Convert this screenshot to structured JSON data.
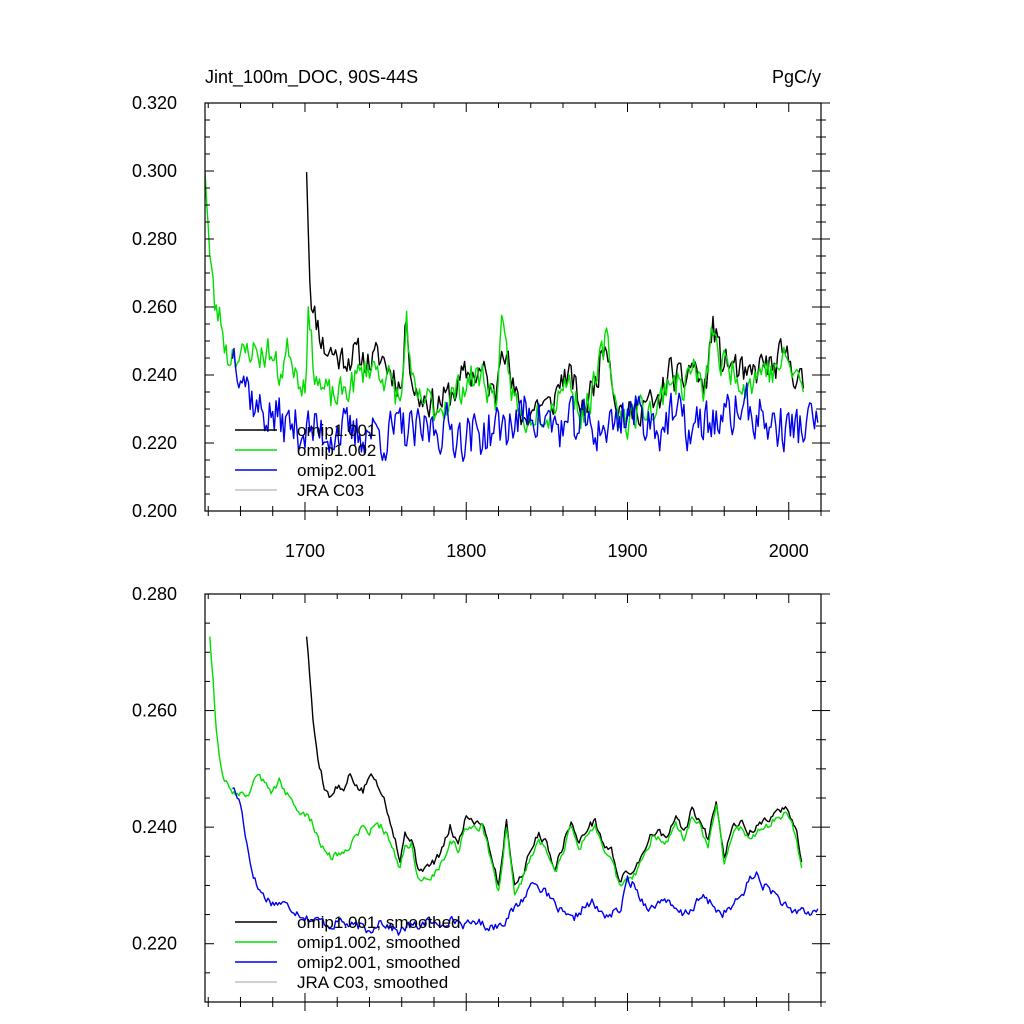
{
  "figure": {
    "title_left": "Jint_100m_DOC, 90S-44S",
    "title_right": "PgC/y"
  },
  "colors": {
    "omip1.001": "#000000",
    "omip1.002": "#00dd00",
    "omip2.001": "#0000ee",
    "JRA C03": "#c0c0c0",
    "axis": "#000000"
  },
  "chart_data": [
    {
      "type": "line",
      "title": "Jint_100m_DOC, 90S-44S",
      "units": "PgC/y",
      "xlim": [
        1638,
        2020
      ],
      "ylim": [
        0.2,
        0.32
      ],
      "xticks": [
        1700,
        1800,
        1900,
        2000
      ],
      "xtick_labels": [
        "1700",
        "1800",
        "1900",
        "2000"
      ],
      "yticks": [
        0.2,
        0.22,
        0.24,
        0.26,
        0.28,
        0.3,
        0.32
      ],
      "ytick_labels": [
        "0.200",
        "0.220",
        "0.240",
        "0.260",
        "0.280",
        "0.300",
        "0.320"
      ],
      "legend_position": "lower-left",
      "series": [
        {
          "name": "omip1.001",
          "color_key": "omip1.001",
          "noise": 0.0045,
          "noise_seed": 11,
          "x": [
            1701,
            1703,
            1705,
            1708,
            1712,
            1716,
            1722,
            1730,
            1740,
            1748,
            1752,
            1756,
            1760,
            1763,
            1766,
            1770,
            1775,
            1780,
            1790,
            1800,
            1810,
            1818,
            1822,
            1825,
            1828,
            1835,
            1845,
            1852,
            1860,
            1866,
            1872,
            1880,
            1887,
            1893,
            1900,
            1910,
            1918,
            1926,
            1934,
            1940,
            1948,
            1953,
            1958,
            1966,
            1974,
            1980,
            1985,
            1990,
            1995,
            2000,
            2006,
            2009
          ],
          "y": [
            0.302,
            0.27,
            0.258,
            0.255,
            0.248,
            0.247,
            0.245,
            0.246,
            0.244,
            0.245,
            0.242,
            0.24,
            0.236,
            0.258,
            0.24,
            0.233,
            0.234,
            0.231,
            0.234,
            0.24,
            0.241,
            0.233,
            0.253,
            0.247,
            0.237,
            0.227,
            0.232,
            0.23,
            0.24,
            0.238,
            0.229,
            0.238,
            0.252,
            0.232,
            0.227,
            0.232,
            0.23,
            0.241,
            0.237,
            0.244,
            0.235,
            0.255,
            0.244,
            0.243,
            0.238,
            0.241,
            0.244,
            0.241,
            0.245,
            0.244,
            0.24,
            0.236
          ]
        },
        {
          "name": "omip1.002",
          "color_key": "omip1.002",
          "noise": 0.0045,
          "noise_seed": 23,
          "x": [
            1638,
            1641,
            1644,
            1648,
            1652,
            1656,
            1660,
            1666,
            1672,
            1678,
            1684,
            1690,
            1696,
            1700,
            1702,
            1705,
            1710,
            1716,
            1722,
            1730,
            1740,
            1748,
            1752,
            1756,
            1760,
            1763,
            1766,
            1770,
            1775,
            1780,
            1790,
            1800,
            1810,
            1818,
            1822,
            1825,
            1828,
            1835,
            1845,
            1852,
            1860,
            1866,
            1872,
            1880,
            1887,
            1893,
            1900,
            1910,
            1918,
            1926,
            1934,
            1940,
            1948,
            1953,
            1958,
            1966,
            1974,
            1980,
            1985,
            1990,
            1995,
            2000,
            2006,
            2009
          ],
          "y": [
            0.302,
            0.275,
            0.26,
            0.256,
            0.245,
            0.248,
            0.244,
            0.248,
            0.246,
            0.247,
            0.24,
            0.248,
            0.24,
            0.238,
            0.258,
            0.244,
            0.236,
            0.233,
            0.234,
            0.238,
            0.243,
            0.241,
            0.238,
            0.235,
            0.232,
            0.258,
            0.237,
            0.231,
            0.233,
            0.23,
            0.233,
            0.238,
            0.24,
            0.232,
            0.252,
            0.245,
            0.236,
            0.226,
            0.231,
            0.229,
            0.239,
            0.236,
            0.228,
            0.237,
            0.251,
            0.231,
            0.226,
            0.231,
            0.229,
            0.24,
            0.236,
            0.243,
            0.234,
            0.254,
            0.243,
            0.242,
            0.237,
            0.24,
            0.243,
            0.24,
            0.244,
            0.243,
            0.239,
            0.235
          ]
        },
        {
          "name": "omip2.001",
          "color_key": "omip2.001",
          "noise": 0.0065,
          "noise_seed": 37,
          "x": [
            1655,
            1660,
            1665,
            1670,
            1675,
            1680,
            1690,
            1700,
            1710,
            1720,
            1730,
            1740,
            1750,
            1760,
            1770,
            1780,
            1790,
            1800,
            1810,
            1820,
            1830,
            1840,
            1850,
            1860,
            1870,
            1880,
            1890,
            1900,
            1910,
            1920,
            1930,
            1940,
            1950,
            1960,
            1970,
            1980,
            1990,
            2000,
            2010,
            2018
          ],
          "y": [
            0.248,
            0.244,
            0.236,
            0.23,
            0.229,
            0.228,
            0.225,
            0.224,
            0.223,
            0.224,
            0.222,
            0.224,
            0.222,
            0.224,
            0.222,
            0.225,
            0.224,
            0.222,
            0.223,
            0.224,
            0.226,
            0.23,
            0.226,
            0.224,
            0.226,
            0.224,
            0.225,
            0.23,
            0.228,
            0.225,
            0.228,
            0.223,
            0.227,
            0.226,
            0.231,
            0.228,
            0.225,
            0.224,
            0.225,
            0.226
          ]
        }
      ],
      "legend": [
        {
          "label": "omip1.001",
          "color_key": "omip1.001"
        },
        {
          "label": "omip1.002",
          "color_key": "omip1.002"
        },
        {
          "label": "omip2.001",
          "color_key": "omip2.001"
        },
        {
          "label": "JRA C03",
          "color_key": "JRA C03"
        }
      ]
    },
    {
      "type": "line",
      "title": "",
      "xlim": [
        1638,
        2020
      ],
      "ylim": [
        0.21,
        0.28
      ],
      "xticks": [
        1700,
        1800,
        1900,
        2000
      ],
      "xtick_labels": [],
      "yticks": [
        0.22,
        0.24,
        0.26,
        0.28
      ],
      "ytick_labels": [
        "0.220",
        "0.240",
        "0.260",
        "0.280"
      ],
      "legend_position": "lower-left",
      "series": [
        {
          "name": "omip1.001, smoothed",
          "color_key": "omip1.001",
          "noise": 0.0006,
          "noise_seed": 5,
          "x": [
            1701,
            1703,
            1705,
            1708,
            1712,
            1716,
            1720,
            1724,
            1728,
            1732,
            1736,
            1740,
            1744,
            1748,
            1752,
            1756,
            1759,
            1762,
            1766,
            1770,
            1775,
            1780,
            1785,
            1790,
            1795,
            1800,
            1805,
            1810,
            1815,
            1820,
            1825,
            1830,
            1835,
            1840,
            1845,
            1850,
            1855,
            1860,
            1865,
            1870,
            1875,
            1880,
            1885,
            1890,
            1895,
            1900,
            1905,
            1910,
            1915,
            1920,
            1925,
            1930,
            1935,
            1940,
            1945,
            1950,
            1955,
            1960,
            1965,
            1970,
            1975,
            1980,
            1985,
            1990,
            1995,
            2000,
            2005,
            2008
          ],
          "y": [
            0.273,
            0.266,
            0.258,
            0.252,
            0.247,
            0.245,
            0.247,
            0.246,
            0.249,
            0.247,
            0.246,
            0.249,
            0.248,
            0.246,
            0.242,
            0.238,
            0.234,
            0.239,
            0.238,
            0.233,
            0.233,
            0.234,
            0.236,
            0.24,
            0.237,
            0.242,
            0.241,
            0.241,
            0.236,
            0.23,
            0.241,
            0.23,
            0.232,
            0.236,
            0.239,
            0.237,
            0.233,
            0.237,
            0.241,
            0.237,
            0.24,
            0.241,
            0.237,
            0.236,
            0.231,
            0.232,
            0.233,
            0.236,
            0.239,
            0.239,
            0.238,
            0.242,
            0.239,
            0.243,
            0.241,
            0.238,
            0.245,
            0.235,
            0.24,
            0.241,
            0.239,
            0.24,
            0.241,
            0.242,
            0.243,
            0.243,
            0.239,
            0.234
          ]
        },
        {
          "name": "omip1.002, smoothed",
          "color_key": "omip1.002",
          "noise": 0.0006,
          "noise_seed": 9,
          "x": [
            1641,
            1643,
            1645,
            1648,
            1652,
            1656,
            1660,
            1664,
            1668,
            1672,
            1676,
            1680,
            1684,
            1688,
            1692,
            1696,
            1700,
            1704,
            1708,
            1712,
            1716,
            1720,
            1724,
            1728,
            1732,
            1736,
            1740,
            1744,
            1748,
            1752,
            1756,
            1759,
            1762,
            1766,
            1770,
            1775,
            1780,
            1785,
            1790,
            1795,
            1800,
            1805,
            1810,
            1815,
            1820,
            1825,
            1830,
            1835,
            1840,
            1845,
            1850,
            1855,
            1860,
            1865,
            1870,
            1875,
            1880,
            1885,
            1890,
            1895,
            1900,
            1905,
            1910,
            1915,
            1920,
            1925,
            1930,
            1935,
            1940,
            1945,
            1950,
            1955,
            1960,
            1965,
            1970,
            1975,
            1980,
            1985,
            1990,
            1995,
            2000,
            2005,
            2008
          ],
          "y": [
            0.273,
            0.265,
            0.257,
            0.25,
            0.247,
            0.246,
            0.246,
            0.245,
            0.248,
            0.249,
            0.247,
            0.246,
            0.248,
            0.246,
            0.244,
            0.243,
            0.242,
            0.241,
            0.238,
            0.236,
            0.235,
            0.235,
            0.236,
            0.237,
            0.239,
            0.24,
            0.239,
            0.241,
            0.24,
            0.238,
            0.235,
            0.233,
            0.237,
            0.237,
            0.231,
            0.231,
            0.232,
            0.234,
            0.238,
            0.236,
            0.24,
            0.24,
            0.24,
            0.235,
            0.229,
            0.24,
            0.229,
            0.231,
            0.235,
            0.238,
            0.236,
            0.232,
            0.236,
            0.24,
            0.236,
            0.239,
            0.24,
            0.236,
            0.235,
            0.23,
            0.231,
            0.232,
            0.235,
            0.238,
            0.238,
            0.237,
            0.241,
            0.238,
            0.242,
            0.24,
            0.237,
            0.244,
            0.234,
            0.239,
            0.24,
            0.238,
            0.239,
            0.24,
            0.241,
            0.242,
            0.242,
            0.238,
            0.233
          ]
        },
        {
          "name": "omip2.001, smoothed",
          "color_key": "omip2.001",
          "noise": 0.0007,
          "noise_seed": 17,
          "x": [
            1655,
            1660,
            1663,
            1666,
            1670,
            1675,
            1680,
            1686,
            1692,
            1698,
            1704,
            1710,
            1716,
            1722,
            1728,
            1734,
            1740,
            1746,
            1752,
            1758,
            1764,
            1770,
            1776,
            1782,
            1788,
            1794,
            1800,
            1806,
            1812,
            1818,
            1824,
            1830,
            1836,
            1842,
            1848,
            1854,
            1860,
            1866,
            1872,
            1878,
            1884,
            1890,
            1896,
            1900,
            1904,
            1910,
            1916,
            1922,
            1928,
            1934,
            1940,
            1946,
            1952,
            1958,
            1964,
            1970,
            1976,
            1980,
            1984,
            1990,
            1996,
            2002,
            2008,
            2014,
            2018
          ],
          "y": [
            0.247,
            0.244,
            0.239,
            0.234,
            0.23,
            0.228,
            0.227,
            0.227,
            0.226,
            0.225,
            0.224,
            0.224,
            0.223,
            0.224,
            0.223,
            0.223,
            0.222,
            0.224,
            0.223,
            0.222,
            0.223,
            0.223,
            0.224,
            0.223,
            0.224,
            0.224,
            0.223,
            0.224,
            0.223,
            0.223,
            0.224,
            0.226,
            0.228,
            0.231,
            0.229,
            0.227,
            0.225,
            0.224,
            0.226,
            0.227,
            0.225,
            0.225,
            0.226,
            0.231,
            0.23,
            0.227,
            0.226,
            0.228,
            0.226,
            0.225,
            0.226,
            0.228,
            0.227,
            0.225,
            0.226,
            0.228,
            0.231,
            0.232,
            0.23,
            0.229,
            0.227,
            0.225,
            0.226,
            0.225,
            0.226
          ]
        }
      ],
      "legend": [
        {
          "label": "omip1.001, smoothed",
          "color_key": "omip1.001"
        },
        {
          "label": "omip1.002, smoothed",
          "color_key": "omip1.002"
        },
        {
          "label": "omip2.001, smoothed",
          "color_key": "omip2.001"
        },
        {
          "label": "JRA C03, smoothed",
          "color_key": "JRA C03"
        }
      ]
    }
  ]
}
